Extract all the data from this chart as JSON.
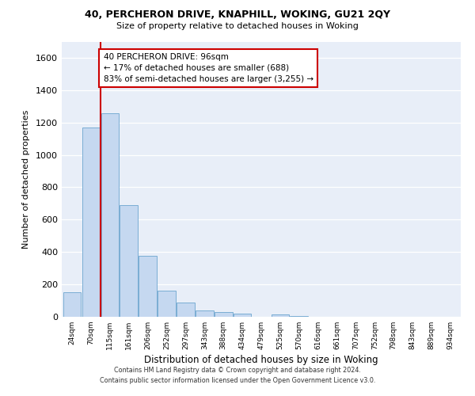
{
  "title1": "40, PERCHERON DRIVE, KNAPHILL, WOKING, GU21 2QY",
  "title2": "Size of property relative to detached houses in Woking",
  "xlabel": "Distribution of detached houses by size in Woking",
  "ylabel": "Number of detached properties",
  "bin_labels": [
    "24sqm",
    "70sqm",
    "115sqm",
    "161sqm",
    "206sqm",
    "252sqm",
    "297sqm",
    "343sqm",
    "388sqm",
    "434sqm",
    "479sqm",
    "525sqm",
    "570sqm",
    "616sqm",
    "661sqm",
    "707sqm",
    "752sqm",
    "798sqm",
    "843sqm",
    "889sqm",
    "934sqm"
  ],
  "bar_heights": [
    150,
    1170,
    1255,
    688,
    375,
    162,
    90,
    38,
    27,
    22,
    0,
    15,
    5,
    0,
    0,
    0,
    0,
    0,
    0,
    0,
    0
  ],
  "bar_color": "#c5d8f0",
  "bar_edge_color": "#7aadd4",
  "background_color": "#e8eef8",
  "grid_color": "#d0d8e8",
  "redline_color": "#cc0000",
  "annotation_line1": "40 PERCHERON DRIVE: 96sqm",
  "annotation_line2": "← 17% of detached houses are smaller (688)",
  "annotation_line3": "83% of semi-detached houses are larger (3,255) →",
  "annotation_box_color": "#ffffff",
  "annotation_box_edge": "#cc0000",
  "footnote1": "Contains HM Land Registry data © Crown copyright and database right 2024.",
  "footnote2": "Contains public sector information licensed under the Open Government Licence v3.0.",
  "ylim": [
    0,
    1700
  ],
  "yticks": [
    0,
    200,
    400,
    600,
    800,
    1000,
    1200,
    1400,
    1600
  ],
  "redline_xindex": 2,
  "fig_bg": "#ffffff"
}
